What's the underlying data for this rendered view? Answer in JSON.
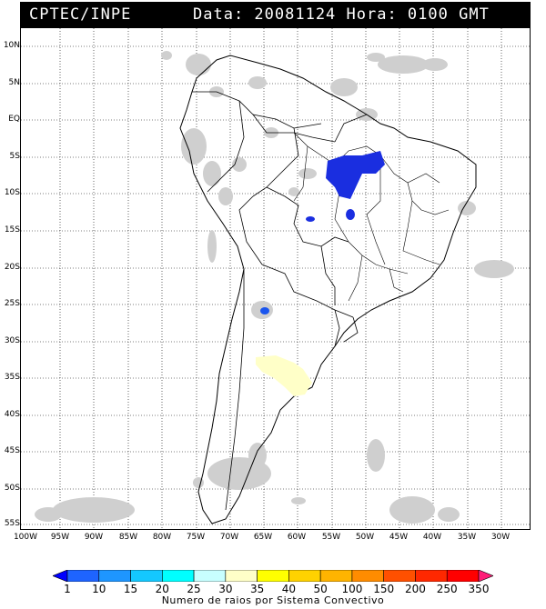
{
  "header": {
    "source": "CPTEC/INPE",
    "datetime": "Data: 20081124 Hora: 0100 GMT"
  },
  "axes": {
    "lat_labels": [
      "10N",
      "5N",
      "EQ",
      "5S",
      "10S",
      "15S",
      "20S",
      "25S",
      "30S",
      "35S",
      "40S",
      "45S",
      "50S",
      "55S"
    ],
    "lon_labels": [
      "100W",
      "95W",
      "90W",
      "85W",
      "80W",
      "75W",
      "70W",
      "65W",
      "60W",
      "55W",
      "50W",
      "45W",
      "40W",
      "35W",
      "30W"
    ]
  },
  "map": {
    "region": "South America",
    "layers": [
      "satellite-cloud-cover",
      "lightning-convective-systems",
      "country-borders",
      "state-borders",
      "lat-lon-grid"
    ]
  },
  "colorbar": {
    "ticks": [
      "1",
      "10",
      "15",
      "20",
      "25",
      "30",
      "35",
      "40",
      "50",
      "100",
      "150",
      "200",
      "250",
      "350"
    ],
    "colors": [
      "#0000ff",
      "#1e64ff",
      "#1e96ff",
      "#14c8ff",
      "#00ffff",
      "#c8ffff",
      "#ffffc8",
      "#ffff00",
      "#ffd200",
      "#ffb400",
      "#ff8c00",
      "#ff5000",
      "#ff2800",
      "#ff0000",
      "#ff1e78"
    ],
    "title": "Numero de raios por Sistema Convectivo"
  }
}
